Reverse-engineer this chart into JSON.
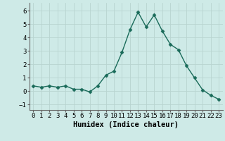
{
  "x": [
    0,
    1,
    2,
    3,
    4,
    5,
    6,
    7,
    8,
    9,
    10,
    11,
    12,
    13,
    14,
    15,
    16,
    17,
    18,
    19,
    20,
    21,
    22,
    23
  ],
  "y": [
    0.4,
    0.3,
    0.4,
    0.3,
    0.4,
    0.15,
    0.15,
    -0.05,
    0.4,
    1.2,
    1.5,
    2.9,
    4.6,
    5.9,
    4.8,
    5.7,
    4.5,
    3.5,
    3.1,
    1.9,
    1.0,
    0.1,
    -0.3,
    -0.6
  ],
  "line_color": "#1a6b5a",
  "marker": "D",
  "markersize": 2.5,
  "linewidth": 1.0,
  "xlabel": "Humidex (Indice chaleur)",
  "xlim": [
    -0.5,
    23.5
  ],
  "ylim": [
    -1.4,
    6.6
  ],
  "yticks": [
    -1,
    0,
    1,
    2,
    3,
    4,
    5,
    6
  ],
  "xtick_labels": [
    "0",
    "1",
    "2",
    "3",
    "4",
    "5",
    "6",
    "7",
    "8",
    "9",
    "10",
    "11",
    "12",
    "13",
    "14",
    "15",
    "16",
    "17",
    "18",
    "19",
    "20",
    "21",
    "22",
    "23"
  ],
  "bg_color": "#ceeae7",
  "grid_color": "#b8d4d0",
  "xlabel_fontsize": 7.5,
  "tick_fontsize": 6.5
}
